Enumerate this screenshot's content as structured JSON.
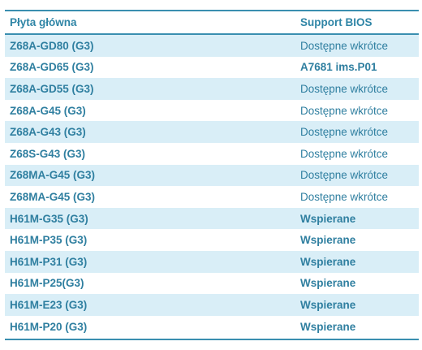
{
  "table": {
    "headers": {
      "motherboard": "Płyta główna",
      "bios_support": "Support BIOS"
    },
    "rows": [
      {
        "model": "Z68A-GD80 (G3)",
        "bios": "Dostępne wkrótce",
        "bold": false
      },
      {
        "model": "Z68A-GD65 (G3)",
        "bios": "A7681 ims.P01",
        "bold": true
      },
      {
        "model": "Z68A-GD55 (G3)",
        "bios": "Dostępne wkrótce",
        "bold": false
      },
      {
        "model": "Z68A-G45 (G3)",
        "bios": "Dostępne wkrótce",
        "bold": false
      },
      {
        "model": "Z68A-G43 (G3)",
        "bios": "Dostępne wkrótce",
        "bold": false
      },
      {
        "model": "Z68S-G43 (G3)",
        "bios": "Dostępne wkrótce",
        "bold": false
      },
      {
        "model": "Z68MA-G45 (G3)",
        "bios": "Dostępne wkrótce",
        "bold": false
      },
      {
        "model": "Z68MA-G45 (G3)",
        "bios": "Dostępne wkrótce",
        "bold": false
      },
      {
        "model": "H61M-G35 (G3)",
        "bios": "Wspierane",
        "bold": true
      },
      {
        "model": "H61M-P35 (G3)",
        "bios": "Wspierane",
        "bold": true
      },
      {
        "model": "H61M-P31 (G3)",
        "bios": "Wspierane",
        "bold": true
      },
      {
        "model": "H61M-P25(G3)",
        "bios": "Wspierane",
        "bold": true
      },
      {
        "model": "H61M-E23 (G3)",
        "bios": "Wspierane",
        "bold": true
      },
      {
        "model": "H61M-P20 (G3)",
        "bios": "Wspierane",
        "bold": true
      }
    ]
  },
  "colors": {
    "accent": "#2f85a6",
    "row_alt": "#d9eef7",
    "rule": "#3a8fb0"
  }
}
